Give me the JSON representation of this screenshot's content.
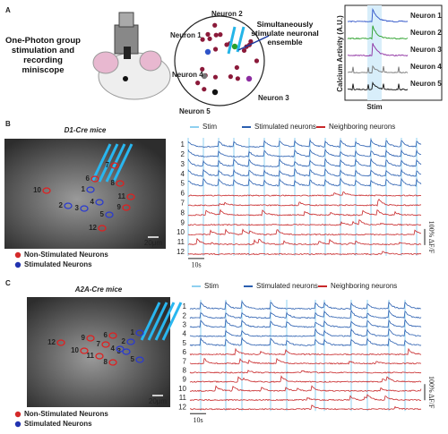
{
  "panels": [
    {
      "letter": "A",
      "title": "One-Photon group stimulation and recording miniscope",
      "ensemble_label": "Simultaneously stimulate neuronal ensemble",
      "neurons": [
        "Neuron 1",
        "Neuron 2",
        "Neuron 3",
        "Neuron 4",
        "Neuron 5"
      ],
      "y_axis_label": "Calcium Activity (A.U.)",
      "stim_label": "Stim"
    },
    {
      "letter": "B",
      "title": "D1-Cre mice",
      "scale_bar": "20μm",
      "legend": [
        "Non-Stimulated Neurons",
        "Stimulated Neurons"
      ],
      "trace_legend": [
        "Stim",
        "Stimulated neurons",
        "Neighboring neurons"
      ],
      "rows": [
        "1",
        "2",
        "3",
        "4",
        "5",
        "6",
        "7",
        "8",
        "9",
        "10",
        "11",
        "12"
      ],
      "amplitude_scale": "100% ΔF/F",
      "time_scale": "10s",
      "roi_stimulated": [
        "1",
        "2",
        "3",
        "4",
        "5"
      ],
      "roi_neighbor": [
        "6",
        "7",
        "8",
        "9",
        "10",
        "11",
        "12"
      ]
    },
    {
      "letter": "C",
      "title": "A2A-Cre mice",
      "scale_bar": "20μm",
      "legend": [
        "Non-Stimulated Neurons",
        "Stimulated Neurons"
      ],
      "trace_legend": [
        "Stim",
        "Stimulated neurons",
        "Neighboring neurons"
      ],
      "rows": [
        "1",
        "2",
        "3",
        "4",
        "5",
        "6",
        "7",
        "8",
        "9",
        "10",
        "11",
        "12"
      ],
      "amplitude_scale": "100% ΔF/F",
      "time_scale": "10s",
      "roi_stimulated": [
        "1",
        "2",
        "3",
        "4",
        "5"
      ],
      "roi_neighbor": [
        "6",
        "7",
        "8",
        "9",
        "10",
        "11",
        "12"
      ]
    }
  ]
}
